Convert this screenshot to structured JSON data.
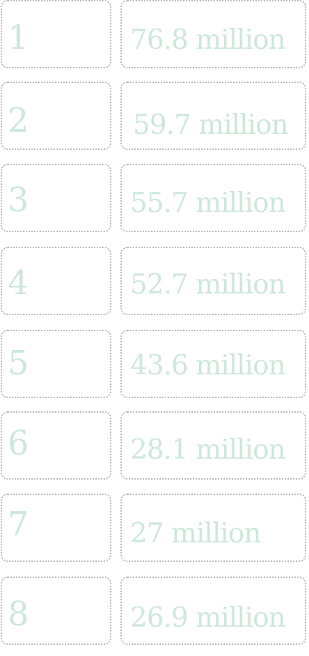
{
  "rows": [
    {
      "rank": "1",
      "value": "76.8 million"
    },
    {
      "rank": "2",
      "value": "59.7 million"
    },
    {
      "rank": "3",
      "value": "55.7 million"
    },
    {
      "rank": "4",
      "value": "52.7 million"
    },
    {
      "rank": "5",
      "value": "43.6 million"
    },
    {
      "rank": "6",
      "value": "28.1 million"
    },
    {
      "rank": "7",
      "value": "27 million"
    },
    {
      "rank": "8",
      "value": "26.9 million"
    }
  ],
  "colors": {
    "text": "#cde8d8",
    "border": "#b8b8b8"
  }
}
